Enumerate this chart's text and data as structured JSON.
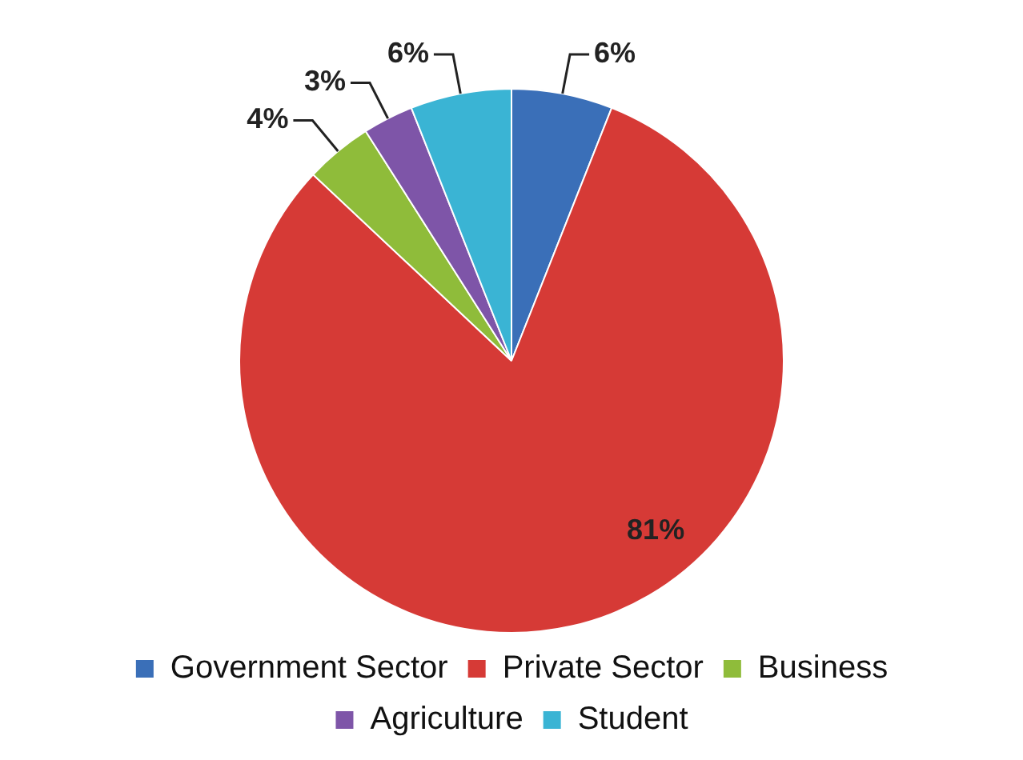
{
  "chart_data": {
    "type": "pie",
    "categories": [
      "Government Sector",
      "Private Sector",
      "Business",
      "Agriculture",
      "Student"
    ],
    "values": [
      6,
      81,
      4,
      3,
      6
    ],
    "value_labels": [
      "6%",
      "81%",
      "4%",
      "3%",
      "6%"
    ],
    "colors": [
      "#3a6fb8",
      "#d63a36",
      "#8fbc3a",
      "#7e55a8",
      "#3ab4d4"
    ],
    "legend": "bottom"
  }
}
